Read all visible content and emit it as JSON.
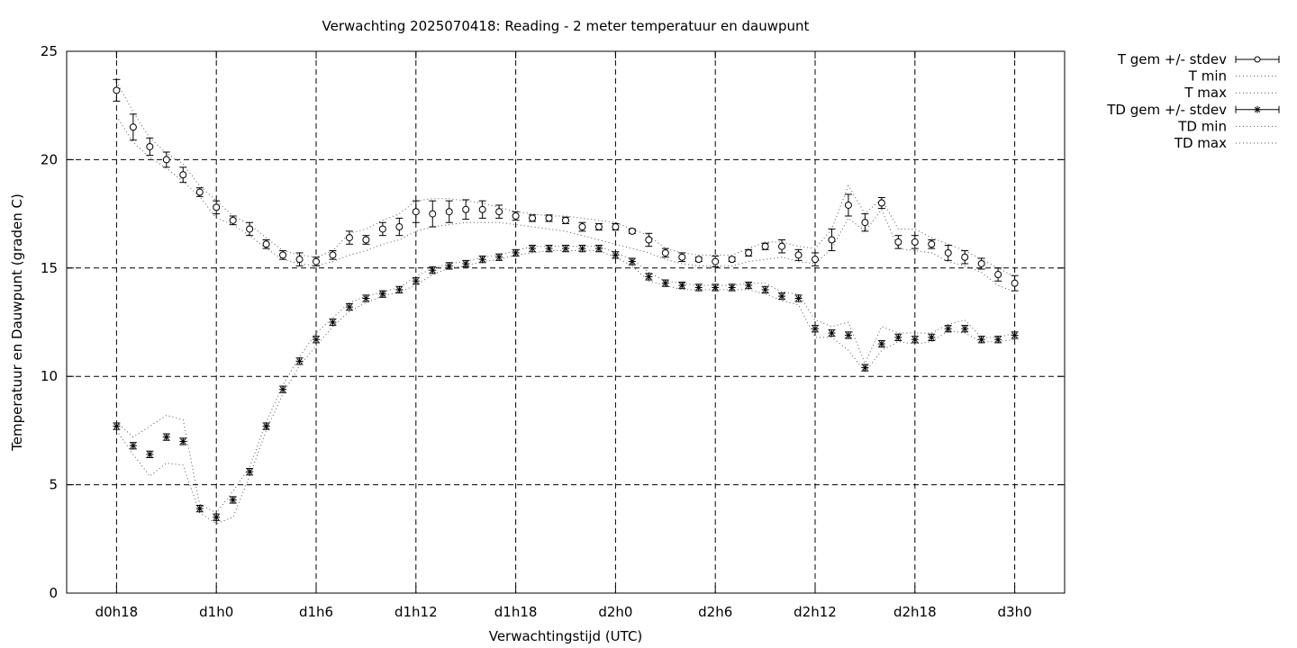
{
  "chart_data": {
    "type": "line",
    "title": "Verwachting 2025070418: Reading - 2 meter temperatuur en dauwpunt",
    "xlabel": "Verwachtingstijd (UTC)",
    "ylabel": "Temperatuur en Dauwpunt (graden C)",
    "x_unit": "hours after d0h0",
    "xlim": [
      15,
      75
    ],
    "ylim": [
      0,
      25
    ],
    "y_ticks": [
      0,
      5,
      10,
      15,
      20,
      25
    ],
    "x_ticks": [
      {
        "x": 18,
        "label": "d0h18"
      },
      {
        "x": 24,
        "label": "d1h0"
      },
      {
        "x": 30,
        "label": "d1h6"
      },
      {
        "x": 36,
        "label": "d1h12"
      },
      {
        "x": 42,
        "label": "d1h18"
      },
      {
        "x": 48,
        "label": "d2h0"
      },
      {
        "x": 54,
        "label": "d2h6"
      },
      {
        "x": 60,
        "label": "d2h12"
      },
      {
        "x": 66,
        "label": "d2h18"
      },
      {
        "x": 72,
        "label": "d3h0"
      }
    ],
    "grid": true,
    "legend_position": "outside-top-right",
    "x": [
      18,
      19,
      20,
      21,
      22,
      23,
      24,
      25,
      26,
      27,
      28,
      29,
      30,
      31,
      32,
      33,
      34,
      35,
      36,
      37,
      38,
      39,
      40,
      41,
      42,
      43,
      44,
      45,
      46,
      47,
      48,
      49,
      50,
      51,
      52,
      53,
      54,
      55,
      56,
      57,
      58,
      59,
      60,
      61,
      62,
      63,
      64,
      65,
      66,
      67,
      68,
      69,
      70,
      71,
      72
    ],
    "series": [
      {
        "name": "T gem +/- stdev",
        "marker": "circle",
        "values": [
          23.2,
          21.5,
          20.6,
          20.0,
          19.3,
          18.5,
          17.8,
          17.2,
          16.8,
          16.1,
          15.6,
          15.4,
          15.3,
          15.6,
          16.4,
          16.3,
          16.8,
          16.9,
          17.6,
          17.5,
          17.6,
          17.7,
          17.7,
          17.6,
          17.4,
          17.3,
          17.3,
          17.2,
          16.9,
          16.9,
          16.9,
          16.7,
          16.3,
          15.7,
          15.5,
          15.4,
          15.3,
          15.4,
          15.7,
          16.0,
          16.0,
          15.6,
          15.4,
          16.3,
          17.9,
          17.1,
          18.0,
          16.2,
          16.2,
          16.1,
          15.7,
          15.5,
          15.2,
          14.7,
          14.3
        ],
        "stdev": [
          0.5,
          0.6,
          0.4,
          0.35,
          0.35,
          0.2,
          0.3,
          0.2,
          0.3,
          0.2,
          0.2,
          0.3,
          0.2,
          0.2,
          0.3,
          0.2,
          0.3,
          0.4,
          0.5,
          0.6,
          0.5,
          0.45,
          0.4,
          0.3,
          0.2,
          0.15,
          0.15,
          0.15,
          0.2,
          0.15,
          0.15,
          0.1,
          0.3,
          0.2,
          0.2,
          0.1,
          0.25,
          0.1,
          0.15,
          0.15,
          0.3,
          0.25,
          0.3,
          0.5,
          0.5,
          0.4,
          0.25,
          0.3,
          0.3,
          0.2,
          0.35,
          0.3,
          0.25,
          0.3,
          0.35
        ]
      },
      {
        "name": "T min",
        "style": "dotted",
        "values": [
          22.0,
          20.8,
          20.1,
          19.6,
          19.0,
          18.3,
          17.3,
          17.0,
          16.5,
          15.9,
          15.4,
          15.2,
          15.1,
          15.3,
          15.6,
          15.8,
          16.1,
          16.3,
          16.7,
          16.9,
          17.0,
          17.1,
          17.1,
          17.1,
          17.0,
          16.9,
          16.8,
          16.7,
          16.5,
          16.3,
          16.1,
          15.9,
          15.7,
          15.4,
          15.2,
          15.1,
          15.1,
          15.1,
          15.3,
          15.4,
          15.5,
          15.3,
          15.2,
          15.9,
          17.3,
          16.7,
          17.7,
          15.9,
          15.8,
          15.7,
          15.3,
          15.1,
          14.8,
          14.2,
          13.9
        ]
      },
      {
        "name": "T max",
        "style": "dotted",
        "values": [
          23.6,
          22.2,
          21.0,
          20.3,
          19.8,
          18.8,
          18.1,
          17.4,
          17.0,
          16.4,
          15.8,
          15.6,
          15.5,
          15.8,
          16.6,
          16.8,
          17.2,
          17.5,
          18.1,
          18.2,
          18.2,
          18.1,
          18.0,
          17.8,
          17.6,
          17.5,
          17.4,
          17.4,
          17.3,
          17.2,
          17.1,
          16.8,
          16.5,
          15.9,
          15.7,
          15.6,
          15.6,
          15.6,
          15.9,
          16.2,
          16.2,
          16.0,
          15.9,
          16.8,
          18.8,
          17.5,
          18.2,
          16.8,
          16.8,
          16.4,
          16.1,
          15.8,
          15.4,
          15.0,
          14.6
        ]
      },
      {
        "name": "TD gem +/- stdev",
        "marker": "star",
        "values": [
          7.7,
          6.8,
          6.4,
          7.2,
          7.0,
          3.9,
          3.5,
          4.3,
          5.6,
          7.7,
          9.4,
          10.7,
          11.7,
          12.5,
          13.2,
          13.6,
          13.8,
          14.0,
          14.4,
          14.9,
          15.1,
          15.2,
          15.4,
          15.5,
          15.7,
          15.9,
          15.9,
          15.9,
          15.9,
          15.9,
          15.6,
          15.3,
          14.6,
          14.3,
          14.2,
          14.1,
          14.1,
          14.1,
          14.2,
          14.0,
          13.7,
          13.6,
          12.2,
          12.0,
          11.9,
          10.4,
          11.5,
          11.8,
          11.7,
          11.8,
          12.2,
          12.2,
          11.7,
          11.7,
          11.9
        ]
      },
      {
        "name": "TD min",
        "style": "dotted",
        "values": [
          7.5,
          6.4,
          5.4,
          6.0,
          5.9,
          3.7,
          3.2,
          3.5,
          5.4,
          7.5,
          9.2,
          10.5,
          11.4,
          12.3,
          13.0,
          13.4,
          13.7,
          13.9,
          14.2,
          14.7,
          15.0,
          15.1,
          15.3,
          15.4,
          15.6,
          15.7,
          15.8,
          15.8,
          15.8,
          15.8,
          15.5,
          15.1,
          14.4,
          14.2,
          14.0,
          14.0,
          14.0,
          14.0,
          14.0,
          13.8,
          13.5,
          13.3,
          11.8,
          11.8,
          11.2,
          10.2,
          11.2,
          11.6,
          11.5,
          11.6,
          12.1,
          12.0,
          11.6,
          11.6,
          11.7
        ]
      },
      {
        "name": "TD max",
        "style": "dotted",
        "values": [
          7.9,
          7.2,
          7.7,
          8.2,
          8.0,
          4.1,
          3.7,
          4.7,
          5.8,
          7.9,
          9.6,
          10.9,
          12.0,
          12.7,
          13.4,
          13.7,
          13.9,
          14.1,
          14.6,
          15.0,
          15.2,
          15.3,
          15.5,
          15.6,
          15.8,
          16.0,
          16.0,
          16.0,
          16.0,
          16.0,
          15.7,
          15.4,
          14.8,
          14.4,
          14.3,
          14.2,
          14.2,
          14.2,
          14.3,
          14.3,
          13.9,
          13.8,
          12.6,
          12.3,
          12.5,
          10.6,
          12.3,
          12.0,
          12.0,
          12.0,
          12.4,
          12.6,
          11.8,
          11.8,
          12.0
        ]
      }
    ]
  }
}
